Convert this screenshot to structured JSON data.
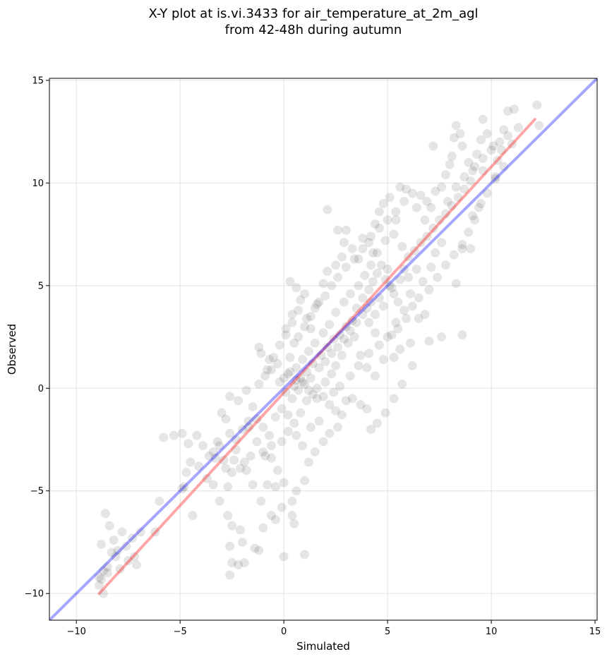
{
  "chart_data": {
    "type": "scatter",
    "title_line1": "X-Y plot at is.vi.3433 for air_temperature_at_2m_agl",
    "title_line2": "from 42-48h during autumn",
    "xlabel": "Simulated",
    "ylabel": "Observed",
    "xlim": [
      -11.3,
      15.1
    ],
    "ylim": [
      -11.3,
      15.1
    ],
    "xticks": [
      -10,
      -5,
      0,
      5,
      10,
      15
    ],
    "yticks": [
      -10,
      -5,
      0,
      5,
      10,
      15
    ],
    "xtick_labels": [
      "−10",
      "−5",
      "0",
      "5",
      "10",
      "15"
    ],
    "ytick_labels": [
      "−10",
      "−5",
      "0",
      "5",
      "10",
      "15"
    ],
    "grid": true,
    "point_color": "#000000",
    "point_opacity": 0.1,
    "reference_line": {
      "color": "#0000ff",
      "opacity": 0.35,
      "x": [
        -11.3,
        15.1
      ],
      "y": [
        -11.3,
        15.1
      ]
    },
    "fit_line": {
      "color": "#ff0000",
      "opacity": 0.35,
      "x": [
        -8.9,
        12.1
      ],
      "y": [
        -10.0,
        13.1
      ]
    },
    "points": [
      [
        -8.8,
        -9.3
      ],
      [
        -8.9,
        -9.6
      ],
      [
        -8.7,
        -10.0
      ],
      [
        -8.5,
        -8.7
      ],
      [
        -8.4,
        -6.7
      ],
      [
        -8.6,
        -6.1
      ],
      [
        -8.8,
        -7.6
      ],
      [
        -8.2,
        -7.4
      ],
      [
        -8.3,
        -8.0
      ],
      [
        -7.8,
        -7.0
      ],
      [
        -7.5,
        -8.4
      ],
      [
        -7.1,
        -8.6
      ],
      [
        -7.2,
        -8.2
      ],
      [
        -8.9,
        -9.2
      ],
      [
        -8.5,
        -9.0
      ],
      [
        -7.9,
        -8.8
      ],
      [
        -6.9,
        -7.0
      ],
      [
        -6.2,
        -7.0
      ],
      [
        -6.0,
        -5.5
      ],
      [
        -5.8,
        -2.4
      ],
      [
        -5.3,
        -2.3
      ],
      [
        -4.9,
        -2.2
      ],
      [
        -4.6,
        -2.7
      ],
      [
        -4.2,
        -2.3
      ],
      [
        -4.8,
        -4.8
      ],
      [
        -4.7,
        -4.1
      ],
      [
        -4.4,
        -6.2
      ],
      [
        -3.9,
        -2.8
      ],
      [
        -3.6,
        -3.3
      ],
      [
        -3.4,
        -4.7
      ],
      [
        -3.2,
        -2.6
      ],
      [
        -3.0,
        -1.2
      ],
      [
        -2.8,
        -1.5
      ],
      [
        -2.6,
        -2.2
      ],
      [
        -2.9,
        -3.5
      ],
      [
        -2.5,
        -4.1
      ],
      [
        -2.7,
        -4.8
      ],
      [
        -3.1,
        -5.5
      ],
      [
        -2.7,
        -6.2
      ],
      [
        -2.5,
        -6.7
      ],
      [
        -2.6,
        -7.7
      ],
      [
        -2.5,
        -8.5
      ],
      [
        -2.6,
        -9.1
      ],
      [
        -2.2,
        -8.6
      ],
      [
        -1.9,
        -8.5
      ],
      [
        -2.0,
        -7.5
      ],
      [
        -2.1,
        -6.9
      ],
      [
        -1.4,
        -7.8
      ],
      [
        -1.2,
        -7.9
      ],
      [
        -1.0,
        -6.8
      ],
      [
        -0.6,
        -6.2
      ],
      [
        -0.4,
        -6.4
      ],
      [
        -0.1,
        -5.8
      ],
      [
        0.4,
        -6.2
      ],
      [
        0.5,
        -6.6
      ],
      [
        1.0,
        -8.1
      ],
      [
        0.0,
        -8.2
      ],
      [
        -0.4,
        -4.8
      ],
      [
        -0.8,
        -4.7
      ],
      [
        -1.1,
        -5.5
      ],
      [
        -1.5,
        -4.7
      ],
      [
        -1.8,
        -4.0
      ],
      [
        -1.9,
        -3.6
      ],
      [
        -2.3,
        -3.0
      ],
      [
        -2.0,
        -2.0
      ],
      [
        -1.7,
        -1.6
      ],
      [
        -1.5,
        -0.9
      ],
      [
        -1.8,
        -0.1
      ],
      [
        -2.2,
        -0.6
      ],
      [
        -2.6,
        -0.4
      ],
      [
        -1.2,
        0.2
      ],
      [
        -0.9,
        0.6
      ],
      [
        -0.6,
        0.9
      ],
      [
        -0.7,
        1.4
      ],
      [
        -1.1,
        1.7
      ],
      [
        -1.2,
        2.0
      ],
      [
        -0.3,
        1.2
      ],
      [
        0.2,
        0.7
      ],
      [
        0.3,
        1.5
      ],
      [
        0.5,
        2.2
      ],
      [
        0.1,
        2.6
      ],
      [
        0.4,
        3.2
      ],
      [
        0.7,
        3.8
      ],
      [
        0.8,
        4.3
      ],
      [
        1.0,
        4.6
      ],
      [
        0.3,
        5.2
      ],
      [
        0.6,
        4.9
      ],
      [
        1.1,
        3.4
      ],
      [
        1.3,
        2.9
      ],
      [
        1.5,
        3.9
      ],
      [
        1.7,
        4.2
      ],
      [
        1.9,
        5.1
      ],
      [
        2.1,
        5.7
      ],
      [
        2.5,
        6.0
      ],
      [
        2.8,
        6.4
      ],
      [
        2.9,
        7.1
      ],
      [
        2.1,
        8.7
      ],
      [
        2.6,
        7.7
      ],
      [
        3.0,
        7.7
      ],
      [
        3.3,
        6.8
      ],
      [
        3.6,
        6.3
      ],
      [
        3.8,
        7.3
      ],
      [
        4.1,
        7.1
      ],
      [
        4.3,
        6.6
      ],
      [
        4.4,
        8.0
      ],
      [
        4.6,
        8.6
      ],
      [
        4.8,
        9.0
      ],
      [
        5.1,
        9.3
      ],
      [
        5.4,
        8.2
      ],
      [
        5.6,
        9.8
      ],
      [
        5.9,
        9.7
      ],
      [
        6.2,
        9.5
      ],
      [
        6.4,
        8.8
      ],
      [
        6.6,
        9.4
      ],
      [
        6.9,
        9.1
      ],
      [
        7.1,
        8.8
      ],
      [
        7.3,
        9.6
      ],
      [
        7.6,
        9.8
      ],
      [
        7.8,
        10.4
      ],
      [
        8.0,
        10.9
      ],
      [
        8.1,
        11.3
      ],
      [
        8.3,
        12.8
      ],
      [
        8.5,
        12.4
      ],
      [
        8.6,
        11.8
      ],
      [
        8.9,
        11.0
      ],
      [
        9.1,
        10.6
      ],
      [
        9.3,
        11.4
      ],
      [
        9.5,
        12.1
      ],
      [
        9.6,
        13.1
      ],
      [
        9.8,
        12.4
      ],
      [
        10.1,
        11.8
      ],
      [
        10.3,
        11.1
      ],
      [
        10.5,
        11.6
      ],
      [
        10.6,
        12.6
      ],
      [
        10.8,
        13.5
      ],
      [
        11.1,
        13.6
      ],
      [
        11.3,
        12.7
      ],
      [
        12.2,
        13.8
      ],
      [
        12.3,
        12.8
      ],
      [
        7.2,
        11.8
      ],
      [
        8.2,
        12.2
      ],
      [
        9.6,
        10.6
      ],
      [
        10.2,
        10.3
      ],
      [
        9.1,
        8.4
      ],
      [
        9.4,
        8.8
      ],
      [
        8.6,
        6.8
      ],
      [
        9.0,
        6.8
      ],
      [
        8.3,
        5.1
      ],
      [
        7.6,
        7.1
      ],
      [
        7.3,
        6.6
      ],
      [
        7.1,
        5.9
      ],
      [
        7.0,
        4.8
      ],
      [
        6.8,
        3.6
      ],
      [
        7.6,
        2.5
      ],
      [
        8.6,
        2.6
      ],
      [
        7.0,
        2.3
      ],
      [
        6.5,
        3.4
      ],
      [
        6.1,
        2.2
      ],
      [
        5.6,
        1.9
      ],
      [
        5.3,
        1.5
      ],
      [
        6.2,
        1.1
      ],
      [
        5.7,
        0.2
      ],
      [
        5.3,
        -0.5
      ],
      [
        4.9,
        -1.2
      ],
      [
        4.5,
        -1.7
      ],
      [
        4.2,
        -2.0
      ],
      [
        4.0,
        -1.0
      ],
      [
        3.7,
        -0.8
      ],
      [
        3.3,
        -0.5
      ],
      [
        3.0,
        -0.6
      ],
      [
        2.8,
        -1.3
      ],
      [
        2.6,
        -1.9
      ],
      [
        2.2,
        -2.2
      ],
      [
        1.9,
        -2.6
      ],
      [
        1.5,
        -3.1
      ],
      [
        1.2,
        -3.6
      ],
      [
        1.0,
        -4.5
      ],
      [
        0.6,
        -5.0
      ],
      [
        0.4,
        -5.5
      ],
      [
        0.0,
        -4.6
      ],
      [
        -0.3,
        -4.0
      ],
      [
        -0.6,
        -3.4
      ],
      [
        -0.9,
        -3.3
      ],
      [
        -0.6,
        -2.8
      ],
      [
        -0.1,
        -2.6
      ],
      [
        0.2,
        -2.1
      ],
      [
        0.6,
        -2.3
      ],
      [
        0.9,
        -2.8
      ],
      [
        1.3,
        -1.9
      ],
      [
        1.7,
        -1.6
      ],
      [
        1.6,
        -0.5
      ],
      [
        1.2,
        -0.1
      ],
      [
        0.9,
        0.3
      ],
      [
        0.6,
        0.4
      ],
      [
        2.0,
        0.3
      ],
      [
        2.3,
        0.7
      ],
      [
        2.5,
        1.1
      ],
      [
        2.8,
        1.6
      ],
      [
        3.1,
        2.2
      ],
      [
        3.4,
        2.5
      ],
      [
        3.7,
        1.6
      ],
      [
        4.0,
        1.0
      ],
      [
        4.4,
        0.6
      ],
      [
        4.8,
        1.4
      ],
      [
        5.2,
        2.6
      ],
      [
        5.5,
        2.9
      ],
      [
        5.9,
        3.4
      ],
      [
        6.2,
        4.0
      ],
      [
        6.5,
        4.4
      ],
      [
        6.7,
        5.2
      ],
      [
        6.4,
        5.8
      ],
      [
        6.0,
        6.4
      ],
      [
        5.7,
        6.9
      ],
      [
        5.3,
        7.5
      ],
      [
        4.9,
        7.2
      ],
      [
        4.5,
        6.6
      ],
      [
        4.2,
        6.0
      ],
      [
        3.9,
        5.5
      ],
      [
        3.6,
        5.0
      ],
      [
        3.2,
        4.6
      ],
      [
        2.9,
        4.2
      ],
      [
        2.5,
        3.7
      ],
      [
        2.2,
        3.1
      ],
      [
        1.9,
        2.7
      ],
      [
        1.5,
        2.2
      ],
      [
        1.2,
        1.8
      ],
      [
        0.9,
        1.4
      ],
      [
        0.6,
        1.0
      ],
      [
        0.3,
        0.8
      ],
      [
        0.0,
        0.5
      ],
      [
        3.5,
        3.9
      ],
      [
        3.8,
        4.4
      ],
      [
        4.1,
        4.8
      ],
      [
        4.3,
        5.2
      ],
      [
        4.5,
        5.6
      ],
      [
        4.7,
        6.0
      ],
      [
        4.9,
        5.3
      ],
      [
        5.1,
        5.0
      ],
      [
        5.3,
        4.6
      ],
      [
        5.5,
        4.2
      ],
      [
        5.0,
        5.8
      ],
      [
        4.6,
        4.4
      ],
      [
        4.2,
        4.2
      ],
      [
        4.0,
        3.9
      ],
      [
        4.4,
        3.6
      ],
      [
        4.8,
        4.0
      ],
      [
        5.2,
        4.9
      ],
      [
        5.6,
        5.3
      ],
      [
        5.8,
        5.8
      ],
      [
        6.0,
        5.4
      ],
      [
        3.3,
        3.3
      ],
      [
        3.0,
        3.0
      ],
      [
        2.7,
        2.6
      ],
      [
        2.4,
        2.4
      ],
      [
        2.1,
        2.0
      ],
      [
        1.8,
        1.6
      ],
      [
        1.4,
        1.2
      ],
      [
        1.1,
        0.8
      ],
      [
        0.8,
        0.5
      ],
      [
        0.5,
        0.1
      ],
      [
        6.3,
        6.7
      ],
      [
        6.6,
        7.1
      ],
      [
        6.9,
        7.4
      ],
      [
        7.2,
        7.8
      ],
      [
        7.5,
        8.2
      ],
      [
        7.8,
        8.5
      ],
      [
        8.1,
        8.9
      ],
      [
        8.4,
        9.3
      ],
      [
        8.7,
        9.7
      ],
      [
        9.0,
        10.1
      ],
      [
        -0.8,
        0.9
      ],
      [
        -0.5,
        1.5
      ],
      [
        -0.2,
        2.1
      ],
      [
        0.1,
        2.9
      ],
      [
        0.4,
        3.6
      ],
      [
        0.7,
        2.5
      ],
      [
        1.0,
        3.0
      ],
      [
        1.3,
        3.5
      ],
      [
        1.6,
        4.1
      ],
      [
        2.0,
        4.5
      ],
      [
        2.3,
        5.0
      ],
      [
        2.6,
        5.4
      ],
      [
        3.0,
        5.9
      ],
      [
        3.4,
        6.3
      ],
      [
        3.8,
        6.8
      ],
      [
        4.2,
        7.4
      ],
      [
        4.6,
        7.8
      ],
      [
        5.0,
        8.2
      ],
      [
        5.4,
        8.6
      ],
      [
        5.8,
        9.1
      ],
      [
        -1.3,
        -1.5
      ],
      [
        -1.0,
        -1.9
      ],
      [
        -0.7,
        -2.3
      ],
      [
        -0.4,
        -1.4
      ],
      [
        -0.1,
        -1.0
      ],
      [
        0.2,
        -1.3
      ],
      [
        0.5,
        -1.7
      ],
      [
        0.8,
        -1.2
      ],
      [
        1.1,
        -0.6
      ],
      [
        1.4,
        -0.3
      ],
      [
        -3.4,
        -3.1
      ],
      [
        -3.1,
        -2.8
      ],
      [
        -2.8,
        -3.9
      ],
      [
        -2.4,
        -3.5
      ],
      [
        -2.1,
        -3.9
      ],
      [
        -1.6,
        -3.3
      ],
      [
        -1.3,
        -2.6
      ],
      [
        -1.0,
        -3.1
      ],
      [
        -4.1,
        -3.8
      ],
      [
        -3.7,
        -4.4
      ],
      [
        2.4,
        -0.2
      ],
      [
        2.7,
        0.1
      ],
      [
        3.2,
        0.6
      ],
      [
        3.6,
        1.1
      ],
      [
        4.1,
        1.7
      ],
      [
        4.6,
        2.1
      ],
      [
        5.0,
        2.5
      ],
      [
        5.4,
        3.2
      ],
      [
        5.8,
        3.8
      ],
      [
        6.1,
        4.6
      ],
      [
        7.4,
        5.4
      ],
      [
        7.8,
        6.0
      ],
      [
        8.2,
        6.5
      ],
      [
        8.6,
        7.0
      ],
      [
        8.9,
        7.6
      ],
      [
        9.2,
        8.2
      ],
      [
        9.5,
        9.0
      ],
      [
        9.8,
        9.5
      ],
      [
        10.2,
        10.2
      ],
      [
        10.6,
        10.8
      ],
      [
        7.9,
        9.1
      ],
      [
        8.3,
        9.8
      ],
      [
        8.7,
        10.3
      ],
      [
        9.2,
        10.8
      ],
      [
        9.6,
        11.2
      ],
      [
        10.0,
        11.6
      ],
      [
        10.4,
        12.0
      ],
      [
        10.8,
        12.3
      ],
      [
        11.0,
        11.9
      ],
      [
        6.8,
        8.2
      ],
      [
        1.7,
        1.0
      ],
      [
        2.0,
        1.3
      ],
      [
        2.3,
        1.7
      ],
      [
        2.6,
        2.0
      ],
      [
        2.9,
        2.4
      ],
      [
        3.2,
        2.8
      ],
      [
        3.5,
        3.2
      ],
      [
        3.8,
        3.6
      ],
      [
        4.1,
        3.2
      ],
      [
        4.4,
        2.7
      ],
      [
        -0.2,
        0.3
      ],
      [
        0.1,
        -0.2
      ],
      [
        0.4,
        -0.5
      ],
      [
        0.7,
        -0.1
      ],
      [
        1.0,
        0.2
      ],
      [
        1.3,
        0.5
      ],
      [
        1.6,
        0.0
      ],
      [
        1.9,
        -0.4
      ],
      [
        2.2,
        -0.8
      ],
      [
        2.5,
        -1.1
      ],
      [
        -8.7,
        -8.9
      ],
      [
        -8.1,
        -8.2
      ],
      [
        -7.6,
        -7.7
      ],
      [
        -7.3,
        -7.3
      ],
      [
        -8.0,
        -7.9
      ],
      [
        -4.9,
        -4.9
      ],
      [
        -4.5,
        -3.6
      ],
      [
        -3.3,
        -3.4
      ],
      [
        -2.3,
        -2.5
      ],
      [
        -1.7,
        -1.9
      ]
    ]
  }
}
